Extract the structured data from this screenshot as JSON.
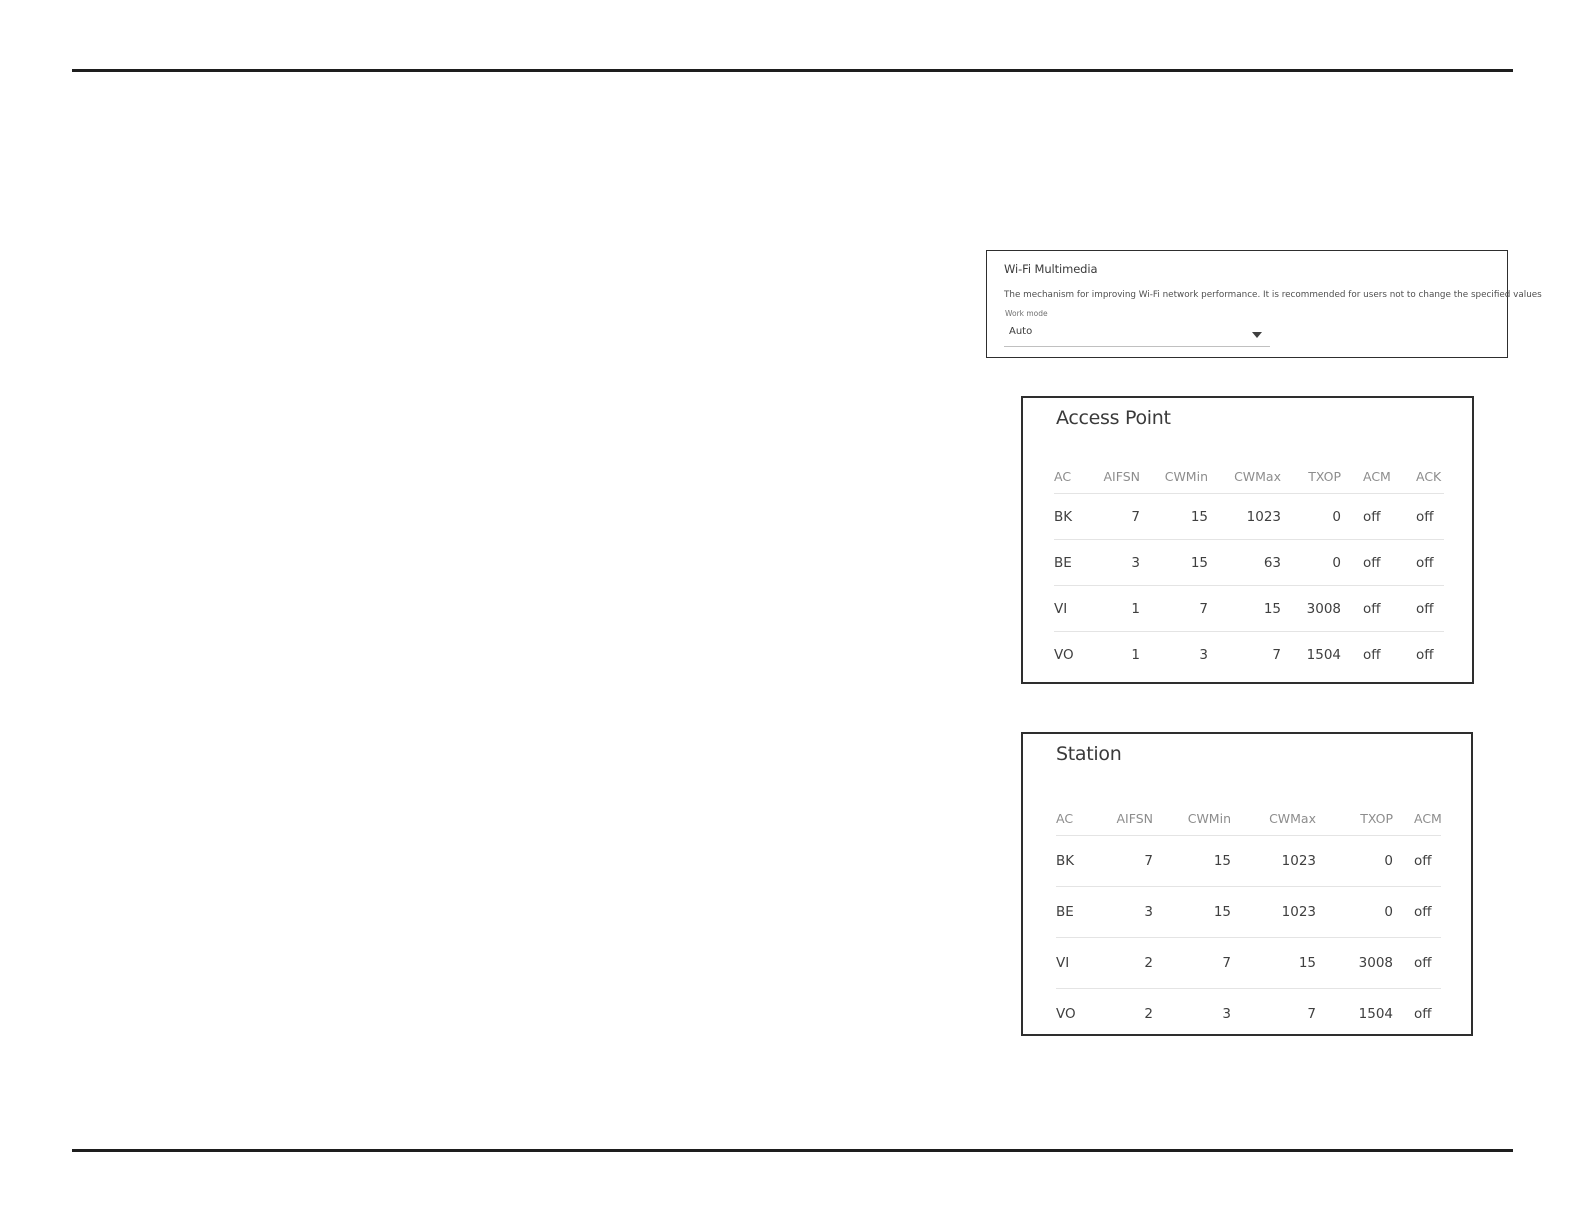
{
  "colors": {
    "page_background": "#ffffff",
    "rule": "#1e1e1e",
    "panel_border": "#2e2e2e",
    "heading_text": "#3a3a3a",
    "body_text": "#4f4f4f",
    "muted_text": "#8d8d8d",
    "separator": "#e4e4e4"
  },
  "wmm_panel": {
    "title": "Wi-Fi Multimedia",
    "description": "The mechanism for improving Wi-Fi network performance. It is recommended for users not to change the specified values",
    "work_mode_label": "Work mode",
    "work_mode_value": "Auto"
  },
  "access_point": {
    "title": "Access Point",
    "columns": [
      "AC",
      "AIFSN",
      "CWMin",
      "CWMax",
      "TXOP",
      "ACM",
      "ACK"
    ],
    "rows": [
      [
        "BK",
        "7",
        "15",
        "1023",
        "0",
        "off",
        "off"
      ],
      [
        "BE",
        "3",
        "15",
        "63",
        "0",
        "off",
        "off"
      ],
      [
        "VI",
        "1",
        "7",
        "15",
        "3008",
        "off",
        "off"
      ],
      [
        "VO",
        "1",
        "3",
        "7",
        "1504",
        "off",
        "off"
      ]
    ]
  },
  "station": {
    "title": "Station",
    "columns": [
      "AC",
      "AIFSN",
      "CWMin",
      "CWMax",
      "TXOP",
      "ACM"
    ],
    "rows": [
      [
        "BK",
        "7",
        "15",
        "1023",
        "0",
        "off"
      ],
      [
        "BE",
        "3",
        "15",
        "1023",
        "0",
        "off"
      ],
      [
        "VI",
        "2",
        "7",
        "15",
        "3008",
        "off"
      ],
      [
        "VO",
        "2",
        "3",
        "7",
        "1504",
        "off"
      ]
    ]
  }
}
